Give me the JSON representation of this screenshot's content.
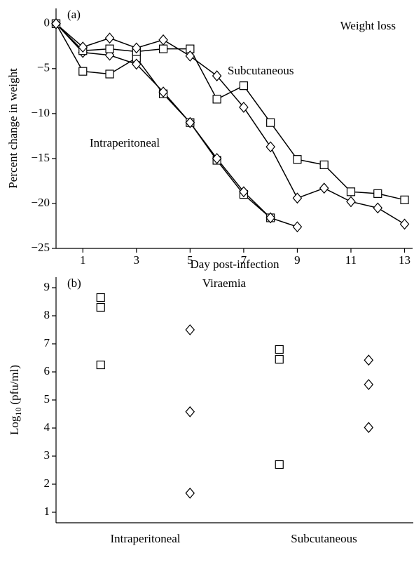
{
  "chart_data": [
    {
      "type": "line",
      "panel_label": "(a)",
      "title": "Weight loss",
      "xlabel": "Day post-infection",
      "ylabel": "Percent change in weight",
      "annotations": [
        "Subcutaneous",
        "Intraperitoneal"
      ],
      "x": [
        0,
        1,
        2,
        3,
        4,
        5,
        6,
        7,
        8,
        9,
        10,
        11,
        12,
        13
      ],
      "xlim": [
        0,
        13.3
      ],
      "xticks": [
        1,
        3,
        5,
        7,
        9,
        11,
        13
      ],
      "ylim": [
        -25,
        1.7
      ],
      "yticks": [
        0,
        {
          "value": -5,
          "label": "−5"
        },
        {
          "value": -10,
          "label": "−10"
        },
        {
          "value": -15,
          "label": "−15"
        },
        {
          "value": -20,
          "label": "−20"
        },
        {
          "value": -25,
          "label": "−25"
        }
      ],
      "series": [
        {
          "marker": "square",
          "color": "#000000",
          "values": [
            0,
            -5.3,
            -5.6,
            -3.8,
            -7.8,
            -11,
            -15.2,
            -19,
            -21.6,
            null,
            null,
            null,
            null,
            null
          ]
        },
        {
          "marker": "diamond",
          "color": "#000000",
          "values": [
            0,
            -3.2,
            -3.5,
            -4.5,
            -7.6,
            -11,
            -15,
            -18.7,
            -21.6,
            -22.6,
            null,
            null,
            null,
            null
          ]
        },
        {
          "marker": "square",
          "color": "#000000",
          "values": [
            0,
            -3.0,
            -2.8,
            -3.1,
            -2.8,
            -2.8,
            -8.4,
            -6.9,
            -11,
            -15.1,
            -15.7,
            -18.7,
            -18.9,
            -19.6
          ]
        },
        {
          "marker": "diamond",
          "color": "#000000",
          "values": [
            0,
            -2.6,
            -1.6,
            -2.7,
            -1.8,
            -3.6,
            -5.8,
            -9.3,
            -13.7,
            -19.4,
            -18.3,
            -19.8,
            -20.5,
            -22.3
          ]
        }
      ]
    },
    {
      "type": "strip",
      "panel_label": "(b)",
      "title": "Viraemia",
      "ylabel": {
        "base": "Log",
        "subscript": "10",
        "rest": "(pfu/ml)"
      },
      "categories": [
        "Intraperitoneal",
        "Subcutaneous"
      ],
      "ylim": [
        0.625,
        9.375
      ],
      "yticks": [
        1,
        2,
        3,
        4,
        5,
        6,
        7,
        8,
        9
      ],
      "series": [
        {
          "marker": "square",
          "color": "#000000",
          "values": [
            [
              8.65,
              8.3,
              6.25
            ],
            [
              6.8,
              6.45,
              2.7
            ]
          ]
        },
        {
          "marker": "diamond",
          "color": "#000000",
          "values": [
            [
              7.5,
              4.58,
              1.68
            ],
            [
              6.42,
              5.55,
              4.02
            ]
          ]
        }
      ]
    }
  ]
}
